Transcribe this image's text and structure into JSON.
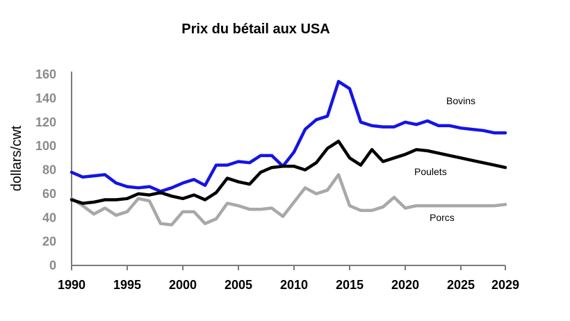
{
  "chart_data": {
    "type": "line",
    "title": "Prix du bétail aux USA",
    "ylabel": "dollars/cwt",
    "xlabel": "",
    "ylim": [
      0,
      160
    ],
    "xlim": [
      1990,
      2029
    ],
    "yticks": [
      0,
      20,
      40,
      60,
      80,
      100,
      120,
      140,
      160
    ],
    "xticks": [
      "1990",
      "1995",
      "2000",
      "2005",
      "2010",
      "2015",
      "2020",
      "2025",
      "2029"
    ],
    "grid": false,
    "x": [
      1990,
      1991,
      1992,
      1993,
      1994,
      1995,
      1996,
      1997,
      1998,
      1999,
      2000,
      2001,
      2002,
      2003,
      2004,
      2005,
      2006,
      2007,
      2008,
      2009,
      2010,
      2011,
      2012,
      2013,
      2014,
      2015,
      2016,
      2017,
      2018,
      2019,
      2020,
      2021,
      2022,
      2023,
      2024,
      2025,
      2026,
      2027,
      2028,
      2029
    ],
    "series": [
      {
        "name": "Bovins",
        "color": "#1414e6",
        "values": [
          78,
          74,
          75,
          76,
          69,
          66,
          65,
          66,
          62,
          65,
          69,
          72,
          67,
          84,
          84,
          87,
          86,
          92,
          92,
          83,
          95,
          114,
          122,
          125,
          154,
          148,
          120,
          117,
          116,
          116,
          120,
          118,
          121,
          117,
          117,
          115,
          114,
          113,
          111,
          111
        ]
      },
      {
        "name": "Poulets",
        "color": "#000000",
        "values": [
          55,
          52,
          53,
          55,
          55,
          56,
          60,
          59,
          61,
          58,
          56,
          59,
          55,
          61,
          73,
          70,
          68,
          78,
          82,
          83,
          83,
          80,
          86,
          98,
          104,
          90,
          84,
          97,
          87,
          90,
          93,
          97,
          96,
          94,
          92,
          90,
          88,
          86,
          84,
          82
        ]
      },
      {
        "name": "Porcs",
        "color": "#a8a8a8",
        "values": [
          56,
          50,
          43,
          48,
          42,
          45,
          56,
          54,
          35,
          34,
          45,
          45,
          35,
          39,
          52,
          50,
          47,
          47,
          48,
          41,
          53,
          65,
          60,
          63,
          76,
          50,
          46,
          46,
          49,
          57,
          48,
          50,
          50,
          50,
          50,
          50,
          50,
          50,
          50,
          51
        ]
      }
    ]
  }
}
